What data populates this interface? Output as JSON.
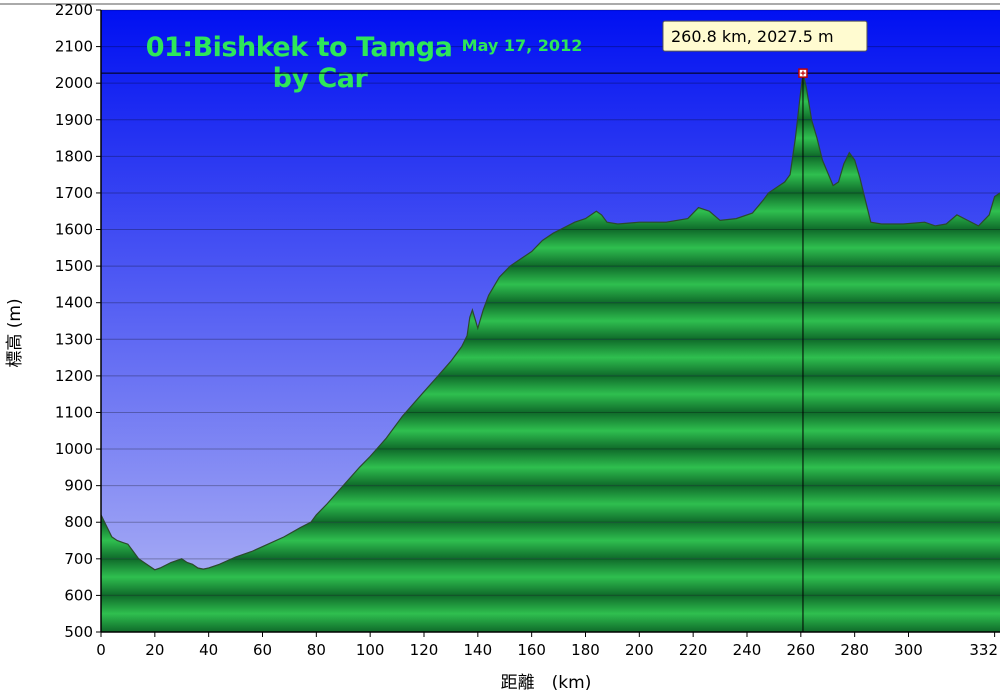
{
  "chart_data": {
    "type": "area",
    "title_line1": "01:Bishkek to Tamga",
    "title_line2": "by Car",
    "date": "May 17, 2012",
    "xlabel": "距離　(km)",
    "ylabel": "標高 (m)",
    "xlim": [
      0,
      334
    ],
    "ylim": [
      500,
      2200
    ],
    "x_ticks": [
      "0",
      "20",
      "40",
      "60",
      "80",
      "100",
      "120",
      "140",
      "160",
      "180",
      "200",
      "220",
      "240",
      "260",
      "280",
      "300",
      "332"
    ],
    "y_ticks": [
      "500",
      "600",
      "700",
      "800",
      "900",
      "1000",
      "1100",
      "1200",
      "1300",
      "1400",
      "1500",
      "1600",
      "1700",
      "1800",
      "1900",
      "2000",
      "2100",
      "2200"
    ],
    "grid": true,
    "colors": {
      "sky_top": "#0010f2",
      "sky_bottom": "#b4b8f4",
      "terrain_dark": "#0f6a2a",
      "terrain_light": "#2fbf4f",
      "title": "#2ee65a",
      "tooltip_bg": "#fffbd0"
    },
    "marker": {
      "x": 260.8,
      "y": 2027.5,
      "label": "260.8 km, 2027.5 m"
    },
    "series": [
      {
        "x": [
          0,
          2,
          4,
          6,
          8,
          10,
          12,
          14,
          16,
          18,
          20,
          22,
          26,
          30,
          32,
          34,
          36,
          38,
          40,
          44,
          50,
          56,
          62,
          68,
          74,
          78,
          80,
          84,
          90,
          96,
          100,
          106,
          112,
          118,
          124,
          130,
          134,
          136,
          137,
          138,
          140,
          142,
          144,
          148,
          152,
          156,
          160,
          164,
          168,
          172,
          176,
          180,
          184,
          186,
          188,
          192,
          200,
          210,
          218,
          222,
          226,
          230,
          236,
          242,
          246,
          248,
          252,
          254,
          256,
          258,
          260,
          260.8,
          262,
          264,
          266,
          268,
          272,
          274,
          276,
          278,
          280,
          282,
          284,
          286,
          290,
          298,
          306,
          310,
          314,
          318,
          322,
          326,
          330,
          332,
          334
        ],
        "y": [
          820,
          790,
          760,
          750,
          745,
          740,
          720,
          700,
          690,
          680,
          670,
          675,
          690,
          700,
          690,
          685,
          675,
          672,
          675,
          685,
          705,
          720,
          740,
          760,
          785,
          800,
          820,
          850,
          900,
          950,
          980,
          1030,
          1090,
          1140,
          1190,
          1240,
          1280,
          1310,
          1360,
          1380,
          1330,
          1380,
          1420,
          1470,
          1500,
          1520,
          1540,
          1570,
          1590,
          1605,
          1620,
          1630,
          1650,
          1640,
          1620,
          1615,
          1620,
          1620,
          1630,
          1660,
          1650,
          1625,
          1630,
          1645,
          1680,
          1700,
          1720,
          1730,
          1750,
          1850,
          1980,
          2027.5,
          1990,
          1900,
          1850,
          1790,
          1720,
          1730,
          1780,
          1810,
          1790,
          1740,
          1680,
          1620,
          1615,
          1615,
          1620,
          1610,
          1615,
          1640,
          1625,
          1610,
          1640,
          1690,
          1700
        ]
      }
    ]
  }
}
